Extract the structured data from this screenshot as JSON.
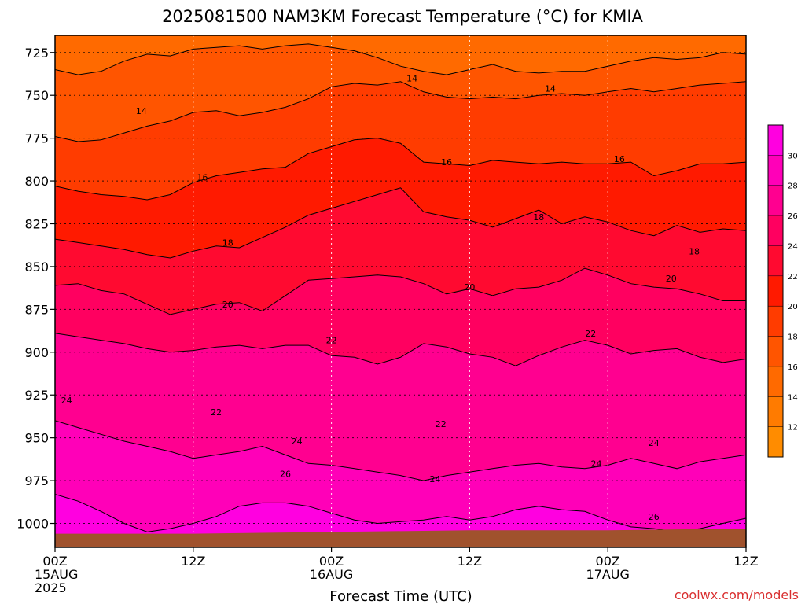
{
  "chart_data": {
    "type": "heatmap",
    "title": "2025081500 NAM3KM Forecast Temperature (°C) for KMIA",
    "xlabel": "Forecast Time (UTC)",
    "ylabel": "",
    "credit": "coolwx.com/models",
    "x_ticks": [
      {
        "hours": 0,
        "lines": [
          "00Z",
          "15AUG",
          "2025"
        ]
      },
      {
        "hours": 12,
        "lines": [
          "12Z"
        ]
      },
      {
        "hours": 24,
        "lines": [
          "00Z",
          "16AUG"
        ]
      },
      {
        "hours": 36,
        "lines": [
          "12Z"
        ]
      },
      {
        "hours": 48,
        "lines": [
          "00Z",
          "17AUG"
        ]
      },
      {
        "hours": 60,
        "lines": [
          "12Z"
        ]
      }
    ],
    "y_ticks": [
      725,
      750,
      775,
      800,
      825,
      850,
      875,
      900,
      925,
      950,
      975,
      1000
    ],
    "xlim": [
      0,
      60
    ],
    "ylim": [
      1014,
      715
    ],
    "y_reversed": true,
    "grid": true,
    "colorbar": {
      "levels": [
        10,
        12,
        14,
        16,
        18,
        20,
        22,
        24,
        26,
        28,
        30,
        32
      ],
      "tick_labels": [
        "12",
        "14",
        "16",
        "18",
        "20",
        "22",
        "24",
        "26",
        "28",
        "30"
      ],
      "colors": [
        "#ff8c00",
        "#ff7b00",
        "#ff6a00",
        "#ff5500",
        "#ff3c00",
        "#ff1a00",
        "#ff0a30",
        "#ff0060",
        "#ff0090",
        "#ff00b8",
        "#ff00e0"
      ]
    },
    "contour_levels": [
      14,
      16,
      18,
      20,
      22,
      24,
      26
    ],
    "contour_labels": [
      {
        "text": "14",
        "x": 7.5,
        "y": 759
      },
      {
        "text": "14",
        "x": 31.0,
        "y": 740
      },
      {
        "text": "14",
        "x": 43.0,
        "y": 746
      },
      {
        "text": "16",
        "x": 12.8,
        "y": 798
      },
      {
        "text": "16",
        "x": 34.0,
        "y": 789
      },
      {
        "text": "16",
        "x": 49.0,
        "y": 787
      },
      {
        "text": "18",
        "x": 15.0,
        "y": 836
      },
      {
        "text": "18",
        "x": 42.0,
        "y": 821
      },
      {
        "text": "18",
        "x": 55.5,
        "y": 841
      },
      {
        "text": "20",
        "x": 15.0,
        "y": 872
      },
      {
        "text": "20",
        "x": 36.0,
        "y": 862
      },
      {
        "text": "20",
        "x": 53.5,
        "y": 857
      },
      {
        "text": "22",
        "x": 24.0,
        "y": 893
      },
      {
        "text": "22",
        "x": 46.5,
        "y": 889
      },
      {
        "text": "22",
        "x": 14.0,
        "y": 935
      },
      {
        "text": "22",
        "x": 33.5,
        "y": 942
      },
      {
        "text": "24",
        "x": 1.0,
        "y": 928
      },
      {
        "text": "24",
        "x": 21.0,
        "y": 952
      },
      {
        "text": "24",
        "x": 33.0,
        "y": 974
      },
      {
        "text": "24",
        "x": 47.0,
        "y": 965
      },
      {
        "text": "24",
        "x": 52.0,
        "y": 953
      },
      {
        "text": "26",
        "x": 20.0,
        "y": 971
      },
      {
        "text": "26",
        "x": 52.0,
        "y": 996
      }
    ],
    "isotherms": [
      {
        "level": 14,
        "points": [
          [
            0,
            735
          ],
          [
            2,
            738
          ],
          [
            4,
            736
          ],
          [
            6,
            730
          ],
          [
            8,
            726
          ],
          [
            10,
            727
          ],
          [
            12,
            723
          ],
          [
            14,
            722
          ],
          [
            16,
            721
          ],
          [
            18,
            723
          ],
          [
            20,
            721
          ],
          [
            22,
            720
          ],
          [
            24,
            722
          ],
          [
            26,
            724
          ],
          [
            28,
            728
          ],
          [
            30,
            733
          ],
          [
            32,
            736
          ],
          [
            34,
            738
          ],
          [
            36,
            735
          ],
          [
            38,
            732
          ],
          [
            40,
            736
          ],
          [
            42,
            737
          ],
          [
            44,
            736
          ],
          [
            46,
            736
          ],
          [
            48,
            733
          ],
          [
            50,
            730
          ],
          [
            52,
            728
          ],
          [
            54,
            729
          ],
          [
            56,
            728
          ],
          [
            58,
            725
          ],
          [
            60,
            726
          ]
        ]
      },
      {
        "level": 16,
        "points": [
          [
            0,
            774
          ],
          [
            2,
            777
          ],
          [
            4,
            776
          ],
          [
            6,
            772
          ],
          [
            8,
            768
          ],
          [
            10,
            765
          ],
          [
            12,
            760
          ],
          [
            14,
            759
          ],
          [
            16,
            762
          ],
          [
            18,
            760
          ],
          [
            20,
            757
          ],
          [
            22,
            752
          ],
          [
            24,
            745
          ],
          [
            26,
            743
          ],
          [
            28,
            744
          ],
          [
            30,
            742
          ],
          [
            32,
            748
          ],
          [
            34,
            751
          ],
          [
            36,
            752
          ],
          [
            38,
            751
          ],
          [
            40,
            752
          ],
          [
            42,
            750
          ],
          [
            44,
            749
          ],
          [
            46,
            750
          ],
          [
            48,
            748
          ],
          [
            50,
            746
          ],
          [
            52,
            748
          ],
          [
            54,
            746
          ],
          [
            56,
            744
          ],
          [
            58,
            743
          ],
          [
            60,
            742
          ]
        ]
      },
      {
        "level": 18,
        "points": [
          [
            0,
            803
          ],
          [
            2,
            806
          ],
          [
            4,
            808
          ],
          [
            6,
            809
          ],
          [
            8,
            811
          ],
          [
            10,
            808
          ],
          [
            12,
            801
          ],
          [
            14,
            797
          ],
          [
            16,
            795
          ],
          [
            18,
            793
          ],
          [
            20,
            792
          ],
          [
            22,
            784
          ],
          [
            24,
            780
          ],
          [
            26,
            776
          ],
          [
            28,
            775
          ],
          [
            30,
            778
          ],
          [
            32,
            789
          ],
          [
            34,
            790
          ],
          [
            36,
            791
          ],
          [
            38,
            788
          ],
          [
            40,
            789
          ],
          [
            42,
            790
          ],
          [
            44,
            789
          ],
          [
            46,
            790
          ],
          [
            48,
            790
          ],
          [
            50,
            789
          ],
          [
            52,
            797
          ],
          [
            54,
            794
          ],
          [
            56,
            790
          ],
          [
            58,
            790
          ],
          [
            60,
            789
          ]
        ]
      },
      {
        "level": 20,
        "points": [
          [
            0,
            834
          ],
          [
            2,
            836
          ],
          [
            4,
            838
          ],
          [
            6,
            840
          ],
          [
            8,
            843
          ],
          [
            10,
            845
          ],
          [
            12,
            841
          ],
          [
            14,
            838
          ],
          [
            16,
            839
          ],
          [
            18,
            833
          ],
          [
            20,
            827
          ],
          [
            22,
            820
          ],
          [
            24,
            816
          ],
          [
            26,
            812
          ],
          [
            28,
            808
          ],
          [
            30,
            804
          ],
          [
            32,
            818
          ],
          [
            34,
            821
          ],
          [
            36,
            823
          ],
          [
            38,
            827
          ],
          [
            40,
            822
          ],
          [
            42,
            817
          ],
          [
            44,
            825
          ],
          [
            46,
            821
          ],
          [
            48,
            824
          ],
          [
            50,
            829
          ],
          [
            52,
            832
          ],
          [
            54,
            826
          ],
          [
            56,
            830
          ],
          [
            58,
            828
          ],
          [
            60,
            829
          ]
        ]
      },
      {
        "level": 22,
        "points": [
          [
            0,
            861
          ],
          [
            2,
            860
          ],
          [
            4,
            864
          ],
          [
            6,
            866
          ],
          [
            8,
            872
          ],
          [
            10,
            878
          ],
          [
            12,
            875
          ],
          [
            14,
            872
          ],
          [
            16,
            871
          ],
          [
            18,
            876
          ],
          [
            20,
            867
          ],
          [
            22,
            858
          ],
          [
            24,
            857
          ],
          [
            26,
            856
          ],
          [
            28,
            855
          ],
          [
            30,
            856
          ],
          [
            32,
            860
          ],
          [
            34,
            866
          ],
          [
            36,
            863
          ],
          [
            38,
            867
          ],
          [
            40,
            863
          ],
          [
            42,
            862
          ],
          [
            44,
            858
          ],
          [
            46,
            851
          ],
          [
            48,
            855
          ],
          [
            50,
            860
          ],
          [
            52,
            862
          ],
          [
            54,
            863
          ],
          [
            56,
            866
          ],
          [
            58,
            870
          ],
          [
            60,
            870
          ]
        ]
      },
      {
        "level": 24,
        "points": [
          [
            0,
            889
          ],
          [
            2,
            891
          ],
          [
            4,
            893
          ],
          [
            6,
            895
          ],
          [
            8,
            898
          ],
          [
            10,
            900
          ],
          [
            12,
            899
          ],
          [
            14,
            897
          ],
          [
            16,
            896
          ],
          [
            18,
            898
          ],
          [
            20,
            896
          ],
          [
            22,
            896
          ],
          [
            24,
            902
          ],
          [
            26,
            903
          ],
          [
            28,
            907
          ],
          [
            30,
            903
          ],
          [
            32,
            895
          ],
          [
            34,
            897
          ],
          [
            36,
            901
          ],
          [
            38,
            903
          ],
          [
            40,
            908
          ],
          [
            42,
            902
          ],
          [
            44,
            897
          ],
          [
            46,
            893
          ],
          [
            48,
            896
          ],
          [
            50,
            901
          ],
          [
            52,
            899
          ],
          [
            54,
            898
          ],
          [
            56,
            903
          ],
          [
            58,
            906
          ],
          [
            60,
            904
          ]
        ]
      },
      {
        "level": 26,
        "points": [
          [
            0,
            940
          ],
          [
            2,
            944
          ],
          [
            4,
            948
          ],
          [
            6,
            952
          ],
          [
            8,
            955
          ],
          [
            10,
            958
          ],
          [
            12,
            962
          ],
          [
            14,
            960
          ],
          [
            16,
            958
          ],
          [
            18,
            955
          ],
          [
            20,
            960
          ],
          [
            22,
            965
          ],
          [
            24,
            966
          ],
          [
            26,
            968
          ],
          [
            28,
            970
          ],
          [
            30,
            972
          ],
          [
            32,
            975
          ],
          [
            34,
            972
          ],
          [
            36,
            970
          ],
          [
            38,
            968
          ],
          [
            40,
            966
          ],
          [
            42,
            965
          ],
          [
            44,
            967
          ],
          [
            46,
            968
          ],
          [
            48,
            966
          ],
          [
            50,
            962
          ],
          [
            52,
            965
          ],
          [
            54,
            968
          ],
          [
            56,
            964
          ],
          [
            58,
            962
          ],
          [
            60,
            960
          ]
        ]
      },
      {
        "level": 28,
        "points": [
          [
            0,
            983
          ],
          [
            2,
            987
          ],
          [
            4,
            993
          ],
          [
            6,
            1000
          ],
          [
            8,
            1005
          ],
          [
            10,
            1003
          ],
          [
            12,
            1000
          ],
          [
            14,
            996
          ],
          [
            16,
            990
          ],
          [
            18,
            988
          ],
          [
            20,
            988
          ],
          [
            22,
            990
          ],
          [
            24,
            994
          ],
          [
            26,
            998
          ],
          [
            28,
            1000
          ],
          [
            30,
            999
          ],
          [
            32,
            998
          ],
          [
            34,
            996
          ],
          [
            36,
            998
          ],
          [
            38,
            996
          ],
          [
            40,
            992
          ],
          [
            42,
            990
          ],
          [
            44,
            992
          ],
          [
            46,
            993
          ],
          [
            48,
            998
          ],
          [
            50,
            1002
          ],
          [
            52,
            1003
          ],
          [
            54,
            1005
          ],
          [
            56,
            1003
          ],
          [
            58,
            1000
          ],
          [
            60,
            997
          ]
        ]
      }
    ],
    "terrain": [
      [
        0,
        1006
      ],
      [
        12,
        1006
      ],
      [
        24,
        1005
      ],
      [
        36,
        1004
      ],
      [
        48,
        1004
      ],
      [
        60,
        1003
      ]
    ]
  }
}
